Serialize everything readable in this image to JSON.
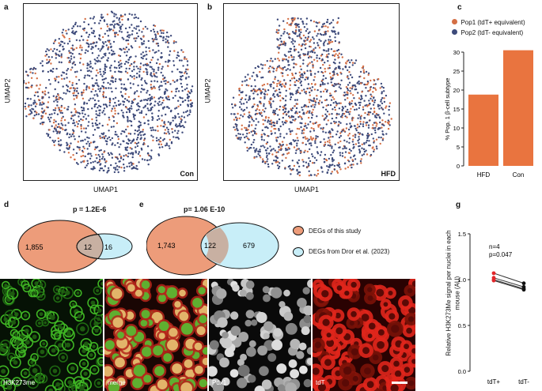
{
  "colors": {
    "pop1": "#D46F45",
    "pop2": "#3D4A7A",
    "venn_left": "#ED9C7A",
    "venn_right": "#C8EEF8",
    "bar": "#E9743F",
    "green_stain": "#2E9F1A",
    "red_stain": "#D8231A"
  },
  "panels": {
    "a": {
      "letter": "a",
      "xlabel": "UMAP1",
      "ylabel": "UMAP2",
      "condition": "Con"
    },
    "b": {
      "letter": "b",
      "xlabel": "UMAP1",
      "ylabel": "UMAP2",
      "condition": "HFD"
    },
    "c": {
      "letter": "c",
      "legend": [
        {
          "name": "Pop1 (tdT+ equivalent)",
          "color": "#D46F45"
        },
        {
          "name": "Pop2 (tdT- equivalent)",
          "color": "#3D4A7A"
        }
      ]
    },
    "d": {
      "letter": "d",
      "pvalue": "p = 1.2E-6",
      "left_only": "1,855",
      "overlap": "12",
      "right_only": "16"
    },
    "e": {
      "letter": "e",
      "pvalue": "p= 1.06 E-10",
      "left_only": "1,743",
      "overlap": "122",
      "right_only": "679",
      "legend": [
        {
          "label": "DEGs of this study",
          "color": "#ED9C7A"
        },
        {
          "label": "DEGs from Dror et al. (2023)",
          "color": "#C8EEF8"
        }
      ]
    },
    "f": {
      "images": [
        {
          "label": "H3K273me",
          "stain": "green"
        },
        {
          "label": "merge",
          "stain": "merge"
        },
        {
          "label": "Pdx1",
          "stain": "gray"
        },
        {
          "label": "tdT",
          "stain": "red"
        }
      ]
    },
    "g": {
      "letter": "g",
      "ylabel": "Relative H3K273Me signal per nuclei in each mouse (AU)",
      "annotation_n": "n=4",
      "annotation_p": "p=0.047"
    }
  },
  "chart_data": [
    {
      "type": "bar",
      "panel": "c",
      "categories": [
        "HFD",
        "Con"
      ],
      "values": [
        18.8,
        30.5
      ],
      "ylabel": "% Pop. 1 β-cell subtype",
      "ylim": [
        0,
        30
      ],
      "yticks": [
        "0",
        "5",
        "10",
        "15",
        "20",
        "25",
        "30"
      ]
    },
    {
      "type": "scatter",
      "panel": "g",
      "categories": [
        "tdT+",
        "tdT-"
      ],
      "ylim": [
        0,
        1.5
      ],
      "yticks": [
        "0.0",
        "0.5",
        "1.0",
        "1.5"
      ],
      "pairs": [
        [
          1.07,
          0.96
        ],
        [
          1.02,
          0.92
        ],
        [
          1.0,
          0.9
        ],
        [
          0.99,
          0.89
        ]
      ]
    }
  ]
}
